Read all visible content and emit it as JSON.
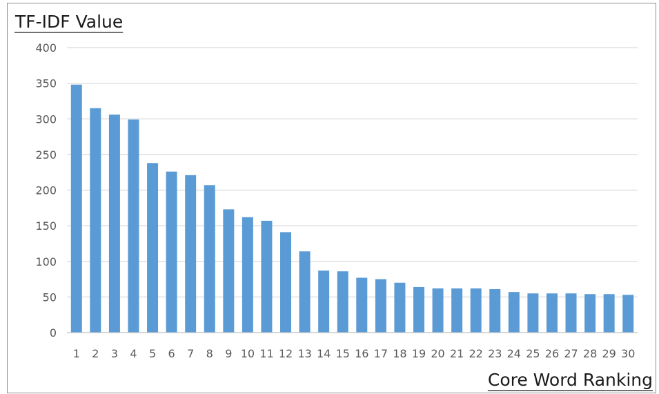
{
  "chart_data": {
    "type": "bar",
    "ylabel": "TF-IDF Value",
    "xlabel": "Core Word Ranking",
    "categories": [
      "1",
      "2",
      "3",
      "4",
      "5",
      "6",
      "7",
      "8",
      "9",
      "10",
      "11",
      "12",
      "13",
      "14",
      "15",
      "16",
      "17",
      "18",
      "19",
      "20",
      "21",
      "22",
      "23",
      "24",
      "25",
      "26",
      "27",
      "28",
      "29",
      "30"
    ],
    "values": [
      348,
      315,
      306,
      299,
      238,
      226,
      221,
      207,
      173,
      162,
      157,
      141,
      114,
      87,
      86,
      77,
      75,
      70,
      64,
      62,
      62,
      62,
      61,
      57,
      55,
      55,
      55,
      54,
      54,
      53
    ],
    "ylim": [
      0,
      400
    ],
    "yticks": [
      0,
      50,
      100,
      150,
      200,
      250,
      300,
      350,
      400
    ],
    "grid": true,
    "legend": "none",
    "bar_color": "#5b9bd5",
    "grid_color": "#d9d9d9",
    "axis_color": "#bfbfbf"
  }
}
